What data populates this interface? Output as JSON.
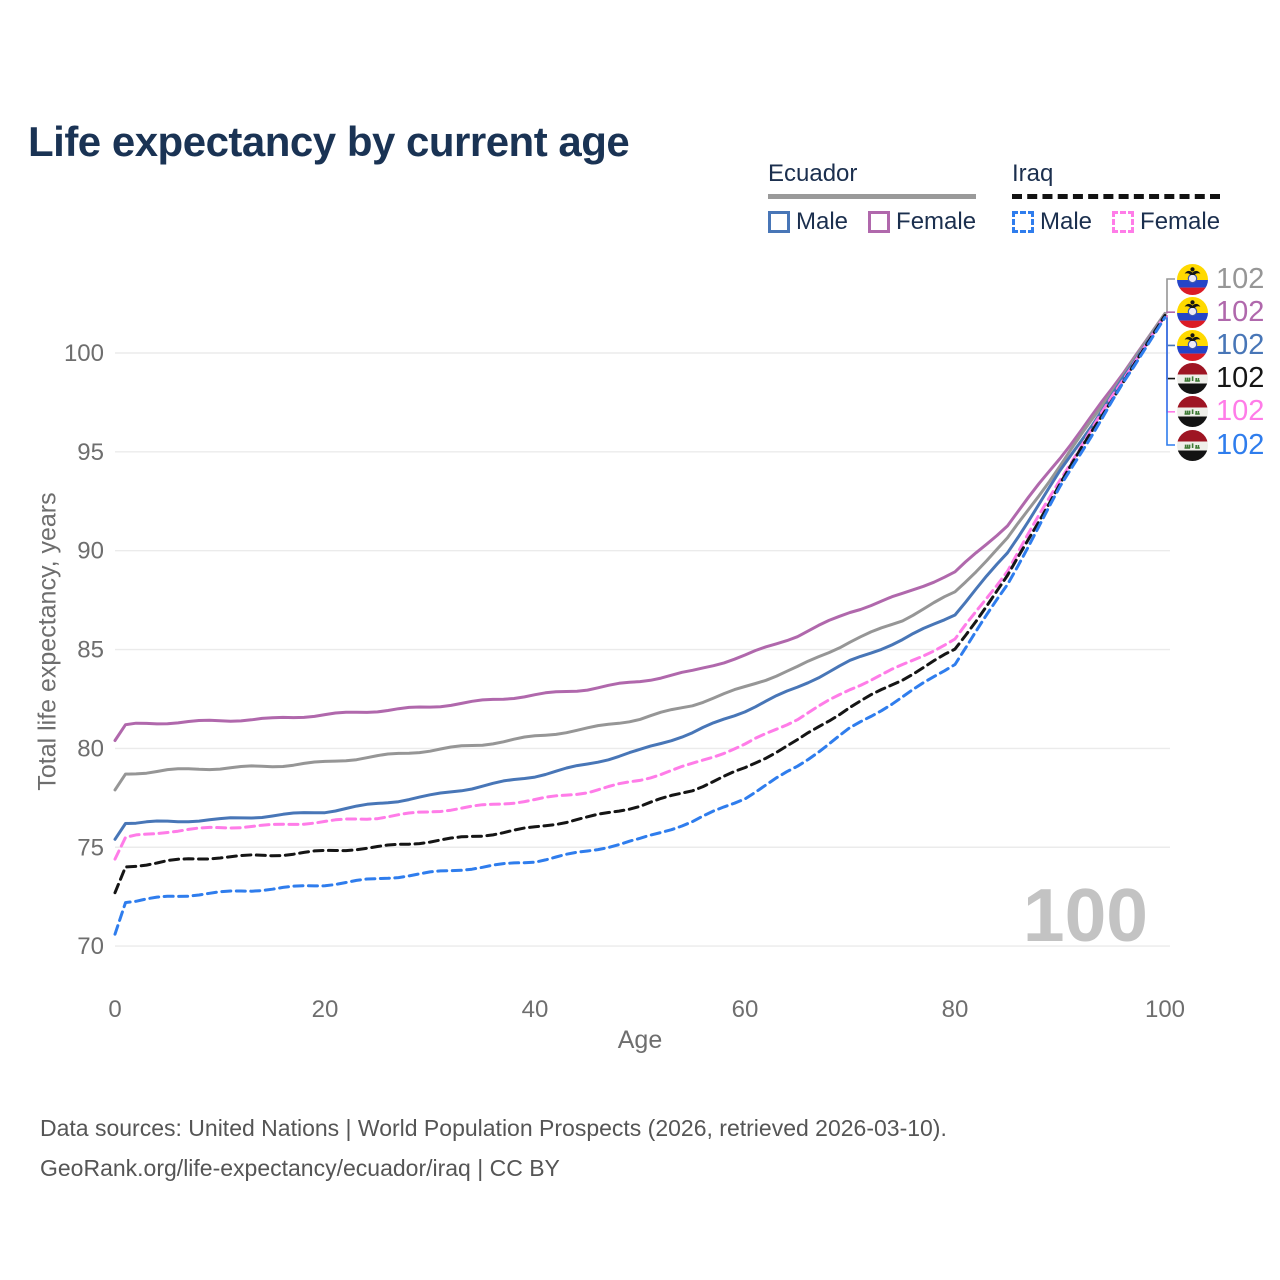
{
  "title": "Life expectancy by current age",
  "legend": {
    "ecuador": {
      "label": "Ecuador",
      "male": "Male",
      "female": "Female"
    },
    "iraq": {
      "label": "Iraq",
      "male": "Male",
      "female": "Female"
    }
  },
  "colors": {
    "ecuador_total": "#969696",
    "ecuador_female": "#b068ac",
    "ecuador_male": "#4876b7",
    "iraq_total": "#151515",
    "iraq_female": "#ff7ce8",
    "iraq_male": "#2f7ded",
    "title": "#1a3354",
    "grid": "#ebebeb",
    "tick": "#6e6e6e",
    "watermark": "#c3c3c3"
  },
  "chart_data": {
    "type": "line",
    "title": "Life expectancy by current age",
    "xlabel": "Age",
    "ylabel": "Total life expectancy, years",
    "x_ticks": [
      0,
      20,
      40,
      60,
      80,
      100
    ],
    "y_ticks": [
      70,
      75,
      80,
      85,
      90,
      95,
      100
    ],
    "xlim": [
      0,
      100
    ],
    "ylim": [
      69.5,
      103
    ],
    "grid": "horizontal-only",
    "legend_position": "top-right",
    "ages": [
      0,
      1,
      5,
      10,
      15,
      20,
      25,
      30,
      35,
      40,
      45,
      50,
      55,
      60,
      65,
      70,
      75,
      80,
      85,
      90,
      95,
      100
    ],
    "series": [
      {
        "name": "Ecuador Female",
        "country": "ecuador",
        "dashed": false,
        "color_key": "ecuador_female",
        "values": [
          80.4,
          81.2,
          81.3,
          81.4,
          81.5,
          81.7,
          81.9,
          82.1,
          82.4,
          82.7,
          83.0,
          83.4,
          83.9,
          84.7,
          85.7,
          86.9,
          87.8,
          88.9,
          91.3,
          94.7,
          98.2,
          102.0
        ]
      },
      {
        "name": "Ecuador",
        "country": "ecuador",
        "dashed": false,
        "color_key": "ecuador_total",
        "values": [
          77.9,
          78.7,
          78.9,
          79.0,
          79.1,
          79.3,
          79.6,
          79.9,
          80.2,
          80.6,
          81.0,
          81.5,
          82.2,
          83.1,
          84.1,
          85.4,
          86.5,
          87.9,
          90.6,
          94.3,
          98.1,
          102.0
        ]
      },
      {
        "name": "Ecuador Male",
        "country": "ecuador",
        "dashed": false,
        "color_key": "ecuador_male",
        "values": [
          75.4,
          76.2,
          76.3,
          76.4,
          76.6,
          76.8,
          77.2,
          77.6,
          78.1,
          78.6,
          79.2,
          79.9,
          80.8,
          81.9,
          83.1,
          84.4,
          85.5,
          86.8,
          89.9,
          94.0,
          97.9,
          101.9
        ]
      },
      {
        "name": "Iraq Female",
        "country": "iraq",
        "dashed": true,
        "color_key": "iraq_female",
        "values": [
          74.4,
          75.5,
          75.8,
          76.0,
          76.1,
          76.3,
          76.5,
          76.8,
          77.1,
          77.4,
          77.8,
          78.4,
          79.2,
          80.2,
          81.5,
          83.0,
          84.2,
          85.5,
          89.0,
          93.6,
          97.8,
          101.9
        ]
      },
      {
        "name": "Iraq",
        "country": "iraq",
        "dashed": true,
        "color_key": "iraq_total",
        "values": [
          72.7,
          74.0,
          74.3,
          74.5,
          74.6,
          74.8,
          75.0,
          75.3,
          75.6,
          76.0,
          76.5,
          77.1,
          77.9,
          79.0,
          80.4,
          82.1,
          83.5,
          85.0,
          88.7,
          93.4,
          97.7,
          101.9
        ]
      },
      {
        "name": "Iraq Male",
        "country": "iraq",
        "dashed": true,
        "color_key": "iraq_male",
        "values": [
          70.6,
          72.2,
          72.5,
          72.7,
          72.9,
          73.1,
          73.4,
          73.7,
          74.0,
          74.3,
          74.8,
          75.4,
          76.3,
          77.5,
          79.1,
          81.0,
          82.6,
          84.3,
          88.3,
          93.2,
          97.6,
          101.8
        ]
      }
    ]
  },
  "end_labels": [
    {
      "flag": "ecuador",
      "value": "102",
      "color_key": "ecuador_total",
      "series_index": 1
    },
    {
      "flag": "ecuador",
      "value": "102",
      "color_key": "ecuador_female",
      "series_index": 0
    },
    {
      "flag": "ecuador",
      "value": "102",
      "color_key": "ecuador_male",
      "series_index": 2
    },
    {
      "flag": "iraq",
      "value": "102",
      "color_key": "iraq_total",
      "series_index": 4
    },
    {
      "flag": "iraq",
      "value": "102",
      "color_key": "iraq_female",
      "series_index": 3
    },
    {
      "flag": "iraq",
      "value": "102",
      "color_key": "iraq_male",
      "series_index": 5
    }
  ],
  "watermark": "100",
  "footer": {
    "line1": "Data sources: United Nations | World Population Prospects (2026, retrieved 2026-03-10).",
    "line2": "GeoRank.org/life-expectancy/ecuador/iraq | CC BY"
  }
}
